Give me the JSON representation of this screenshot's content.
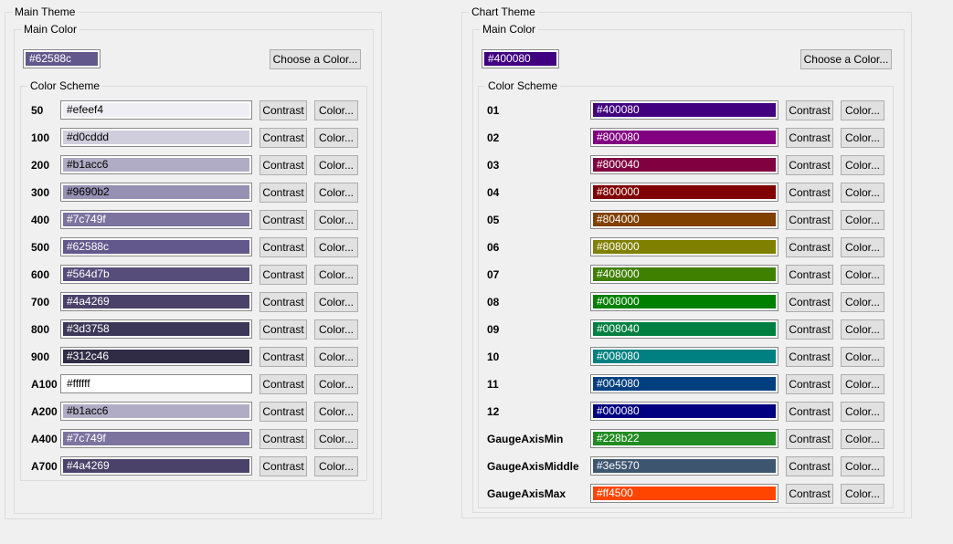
{
  "buttons": {
    "choose": "Choose a Color...",
    "contrast": "Contrast",
    "color": "Color..."
  },
  "colors": {
    "window_bg": "#f0f0f0",
    "groupbox_border": "#dcdcdc",
    "field_border": "#898989",
    "button_bg": "#e1e1e1",
    "button_border": "#adadad"
  },
  "panels": [
    {
      "title": "Main Theme",
      "main_color": {
        "label": "Main Color",
        "value": "#62588c"
      },
      "color_scheme": {
        "label": "Color Scheme",
        "rows": [
          {
            "name": "50",
            "value": "#efeef4"
          },
          {
            "name": "100",
            "value": "#d0cddd"
          },
          {
            "name": "200",
            "value": "#b1acc6"
          },
          {
            "name": "300",
            "value": "#9690b2"
          },
          {
            "name": "400",
            "value": "#7c749f"
          },
          {
            "name": "500",
            "value": "#62588c"
          },
          {
            "name": "600",
            "value": "#564d7b"
          },
          {
            "name": "700",
            "value": "#4a4269"
          },
          {
            "name": "800",
            "value": "#3d3758"
          },
          {
            "name": "900",
            "value": "#312c46"
          },
          {
            "name": "A100",
            "value": "#ffffff"
          },
          {
            "name": "A200",
            "value": "#b1acc6"
          },
          {
            "name": "A400",
            "value": "#7c749f"
          },
          {
            "name": "A700",
            "value": "#4a4269"
          }
        ]
      }
    },
    {
      "title": "Chart Theme",
      "main_color": {
        "label": "Main Color",
        "value": "#400080"
      },
      "color_scheme": {
        "label": "Color Scheme",
        "rows": [
          {
            "name": "01",
            "value": "#400080"
          },
          {
            "name": "02",
            "value": "#800080"
          },
          {
            "name": "03",
            "value": "#800040"
          },
          {
            "name": "04",
            "value": "#800000"
          },
          {
            "name": "05",
            "value": "#804000"
          },
          {
            "name": "06",
            "value": "#808000"
          },
          {
            "name": "07",
            "value": "#408000"
          },
          {
            "name": "08",
            "value": "#008000"
          },
          {
            "name": "09",
            "value": "#008040"
          },
          {
            "name": "10",
            "value": "#008080"
          },
          {
            "name": "11",
            "value": "#004080"
          },
          {
            "name": "12",
            "value": "#000080"
          },
          {
            "name": "GaugeAxisMin",
            "value": "#228b22"
          },
          {
            "name": "GaugeAxisMiddle",
            "value": "#3e5570"
          },
          {
            "name": "GaugeAxisMax",
            "value": "#ff4500"
          }
        ]
      }
    }
  ]
}
